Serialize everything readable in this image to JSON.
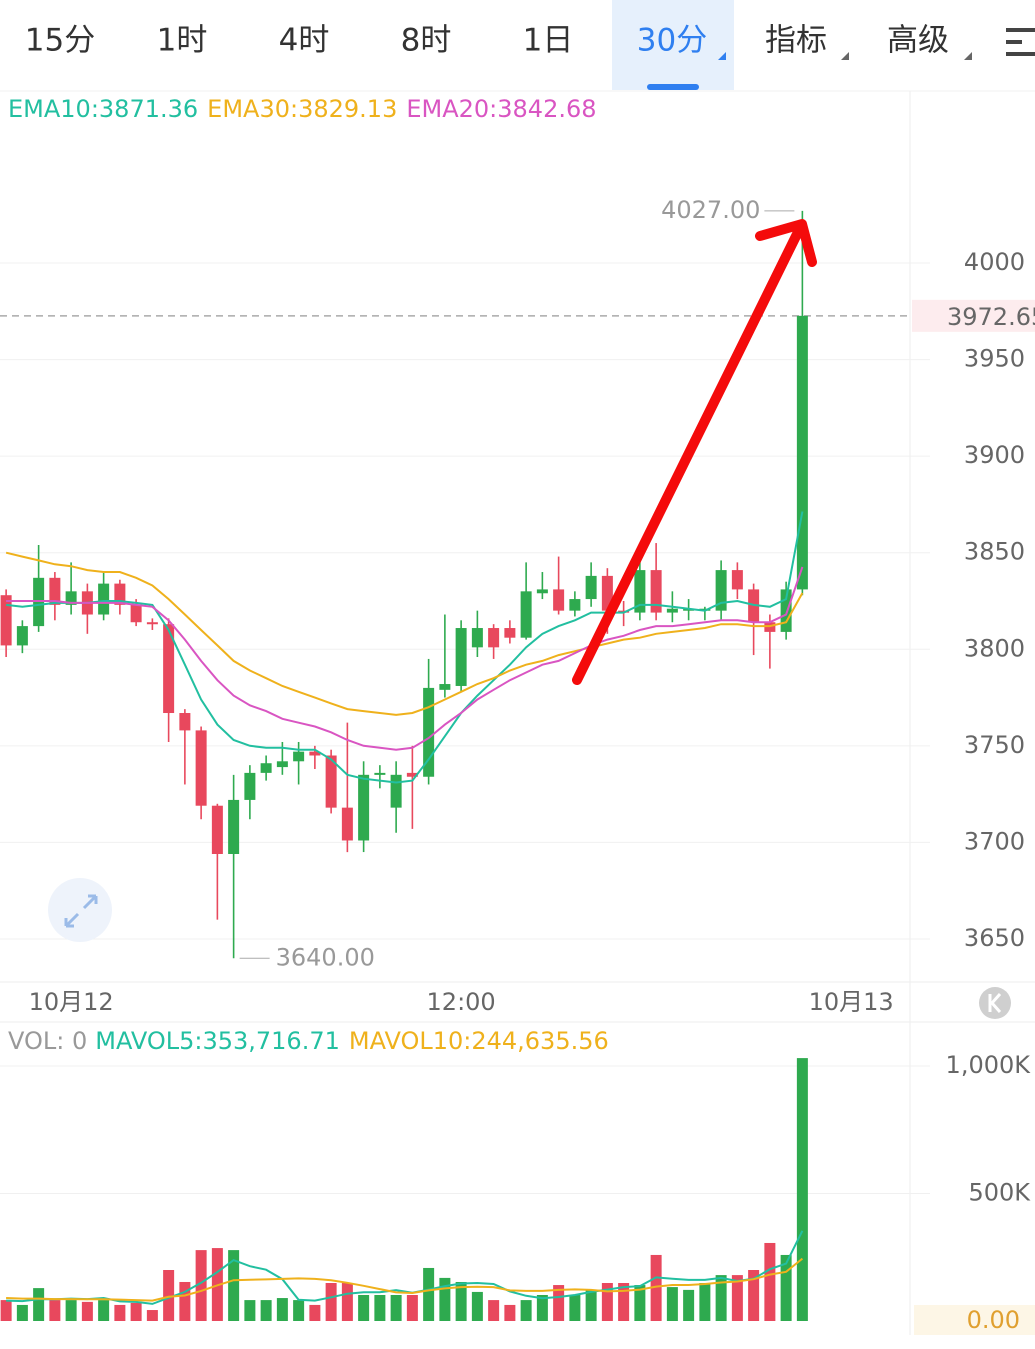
{
  "toolbar": {
    "tabs": [
      "15分",
      "1时",
      "4时",
      "8时",
      "1日",
      "30分",
      "指标",
      "高级"
    ],
    "active": 5
  },
  "chart_data": [
    {
      "type": "candlestick",
      "categories": [
        null,
        null,
        null,
        null,
        "10月12",
        null,
        null,
        null,
        null,
        null,
        null,
        null,
        null,
        null,
        null,
        null,
        null,
        null,
        null,
        null,
        null,
        null,
        null,
        null,
        null,
        null,
        null,
        null,
        "12:00",
        null,
        null,
        null,
        null,
        null,
        null,
        null,
        null,
        null,
        null,
        null,
        null,
        null,
        null,
        null,
        null,
        null,
        null,
        null,
        null,
        null,
        null,
        null,
        "10月13",
        null,
        null,
        null
      ],
      "open": [
        3828,
        3802,
        3812,
        3837,
        3823,
        3830,
        3818,
        3834,
        3823,
        3814,
        3813,
        3767,
        3758,
        3719,
        3694,
        3722,
        3736,
        3739,
        3742,
        3747,
        3745,
        3718,
        3701,
        3735,
        3718,
        3736,
        3734,
        3779,
        3781,
        3801,
        3811,
        3811,
        3806,
        3829,
        3831,
        3820,
        3826,
        3838,
        3820,
        3819,
        3841,
        3819,
        3820,
        3820,
        3820,
        3841,
        3831,
        3814,
        3809,
        3831,
        null,
        null,
        null,
        null,
        null,
        null
      ],
      "high": [
        3831,
        3815,
        3854,
        3840,
        3845,
        3834,
        3840,
        3836,
        3826,
        3816,
        3816,
        3769,
        3760,
        3720,
        3735,
        3740,
        3745,
        3752,
        3752,
        3750,
        3748,
        3762,
        3742,
        3740,
        3742,
        3750,
        3795,
        3818,
        3815,
        3820,
        3813,
        3815,
        3845,
        3840,
        3848,
        3830,
        3845,
        3842,
        3825,
        3846,
        3855,
        3830,
        3826,
        3822,
        3846,
        3845,
        3834,
        3818,
        3835,
        4027,
        null,
        null,
        null,
        null,
        null,
        null
      ],
      "low": [
        3796,
        3798,
        3809,
        3815,
        3818,
        3808,
        3815,
        3818,
        3812,
        3810,
        3752,
        3730,
        3712,
        3660,
        3640,
        3712,
        3732,
        3735,
        3730,
        3738,
        3715,
        3695,
        3695,
        3728,
        3705,
        3707,
        3730,
        3775,
        3778,
        3796,
        3795,
        3803,
        3805,
        3826,
        3818,
        3817,
        3822,
        3808,
        3812,
        3815,
        3815,
        3814,
        3815,
        3815,
        3815,
        3826,
        3797,
        3790,
        3805,
        3828,
        null,
        null,
        null,
        null,
        null,
        null
      ],
      "close": [
        3802,
        3812,
        3837,
        3823,
        3830,
        3818,
        3834,
        3823,
        3814,
        3813,
        3767,
        3758,
        3719,
        3694,
        3722,
        3736,
        3741,
        3742,
        3747,
        3745,
        3718,
        3701,
        3735,
        3736,
        3735,
        3734,
        3780,
        3782,
        3811,
        3811,
        3801,
        3806,
        3830,
        3831,
        3820,
        3826,
        3838,
        3820,
        3819,
        3841,
        3819,
        3821,
        3821,
        3821,
        3841,
        3831,
        3814,
        3809,
        3831,
        3972.65,
        null,
        null,
        null,
        null,
        null,
        null
      ],
      "up_color": "#2eaa4f",
      "down_color": "#e8485d",
      "series": [
        {
          "name": "EMA10:3871.36",
          "color": "#22bfa0",
          "values": [
            3823,
            3822,
            3823,
            3824,
            3824,
            3824,
            3825,
            3825,
            3824,
            3823,
            3810,
            3792,
            3774,
            3761,
            3753,
            3750,
            3749,
            3749,
            3748,
            3748,
            3743,
            3735,
            3733,
            3732,
            3731,
            3732,
            3743,
            3755,
            3767,
            3776,
            3784,
            3792,
            3801,
            3808,
            3812,
            3815,
            3819,
            3819,
            3819,
            3823,
            3823,
            3822,
            3821,
            3820,
            3824,
            3825,
            3823,
            3822,
            3826,
            3871.36,
            null,
            null,
            null,
            null,
            null,
            null
          ]
        },
        {
          "name": "EMA30:3829.13",
          "color": "#efb11c",
          "values": [
            3850,
            3848,
            3846,
            3844,
            3843,
            3841,
            3840,
            3840,
            3837,
            3833,
            3826,
            3818,
            3810,
            3802,
            3794,
            3789,
            3785,
            3781,
            3778,
            3775,
            3772,
            3769,
            3768,
            3767,
            3766,
            3767,
            3770,
            3774,
            3778,
            3782,
            3785,
            3789,
            3792,
            3794,
            3797,
            3799,
            3801,
            3803,
            3805,
            3806,
            3808,
            3809,
            3810,
            3811,
            3813,
            3813,
            3812,
            3812,
            3814,
            3829.13,
            null,
            null,
            null,
            null,
            null,
            null
          ]
        },
        {
          "name": "EMA20:3842.68",
          "color": "#d955c2",
          "values": [
            3825,
            3825,
            3825,
            3825,
            3824,
            3824,
            3824,
            3824,
            3823,
            3822,
            3815,
            3805,
            3794,
            3784,
            3776,
            3771,
            3768,
            3764,
            3762,
            3760,
            3757,
            3753,
            3750,
            3749,
            3748,
            3749,
            3754,
            3761,
            3767,
            3774,
            3779,
            3784,
            3788,
            3792,
            3794,
            3798,
            3802,
            3805,
            3807,
            3810,
            3812,
            3812,
            3813,
            3814,
            3815,
            3815,
            3814,
            3814,
            3818,
            3842.68,
            null,
            null,
            null,
            null,
            null,
            null
          ]
        }
      ],
      "ylim": [
        3630,
        4090
      ],
      "yticks": [
        3650,
        3700,
        3750,
        3800,
        3850,
        3900,
        3950,
        4000
      ],
      "grid": true,
      "annotations": [
        {
          "value": 4027,
          "label": "4027.00"
        },
        {
          "value": 3640,
          "label": "3640.00"
        }
      ],
      "last_price": {
        "value": 3972.65,
        "label": "3972.65"
      }
    },
    {
      "type": "bar",
      "legend_prefix": "VOL: 0",
      "values": [
        82000,
        63000,
        129000,
        82000,
        82000,
        75000,
        82000,
        63000,
        71000,
        43000,
        200000,
        153000,
        278000,
        286000,
        278000,
        82000,
        82000,
        90000,
        82000,
        63000,
        149000,
        149000,
        102000,
        102000,
        102000,
        102000,
        208000,
        169000,
        153000,
        114000,
        82000,
        63000,
        82000,
        102000,
        141000,
        102000,
        122000,
        149000,
        149000,
        141000,
        259000,
        133000,
        122000,
        149000,
        180000,
        180000,
        200000,
        306000,
        259000,
        1031000,
        null,
        null,
        null,
        null,
        null,
        null
      ],
      "series": [
        {
          "name": "MAVOL5:353,716.71",
          "color": "#22bfa0",
          "values": [
            80000,
            78000,
            85000,
            85000,
            88000,
            86000,
            90000,
            77000,
            75000,
            67000,
            91000,
            114000,
            150000,
            192000,
            239000,
            215000,
            201000,
            164000,
            83000,
            80000,
            93000,
            107000,
            113000,
            113000,
            121000,
            111000,
            123000,
            137000,
            147000,
            149000,
            145000,
            116000,
            99000,
            89000,
            94000,
            102000,
            114000,
            123000,
            133000,
            137000,
            171000,
            166000,
            161000,
            161000,
            169000,
            157000,
            166000,
            203000,
            225000,
            353716.71,
            null,
            null,
            null,
            null,
            null,
            null
          ]
        },
        {
          "name": "MAVOL10:244,635.56",
          "color": "#efb11c",
          "values": [
            90000,
            88000,
            88000,
            86000,
            86000,
            85000,
            85000,
            84000,
            82000,
            80000,
            95000,
            100000,
            118000,
            140000,
            160000,
            162000,
            163000,
            165000,
            167000,
            165000,
            160000,
            150000,
            138000,
            125000,
            112000,
            110000,
            120000,
            128000,
            133000,
            134000,
            133000,
            120000,
            118000,
            118000,
            122000,
            124000,
            122000,
            116000,
            118000,
            123000,
            135000,
            141000,
            141000,
            145000,
            151000,
            155000,
            164000,
            182000,
            193000,
            244635.56,
            null,
            null,
            null,
            null,
            null,
            null
          ]
        }
      ],
      "ylim": [
        0,
        1160000
      ],
      "yticks": [
        {
          "value": 0,
          "label": "0.00"
        },
        {
          "value": 500000,
          "label": "500K"
        },
        {
          "value": 1000000,
          "label": "1,000K"
        }
      ],
      "grid": true
    }
  ]
}
